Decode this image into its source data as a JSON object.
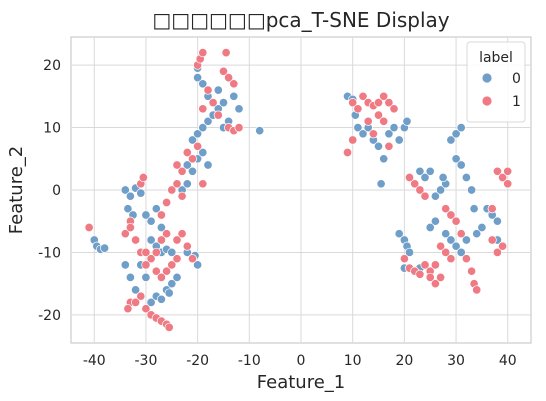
{
  "chart_data": {
    "type": "scatter",
    "title": "□□□□□□pca_T-SNE Display",
    "xlabel": "Feature_1",
    "ylabel": "Feature_2",
    "xlim": [
      -44.5,
      44.5
    ],
    "ylim": [
      -24.5,
      24.5
    ],
    "xticks": [
      -40,
      -30,
      -20,
      -10,
      0,
      10,
      20,
      30,
      40
    ],
    "yticks": [
      -20,
      -10,
      0,
      10,
      20
    ],
    "grid": true,
    "legend": {
      "title": "label",
      "placement": "top-right",
      "entries": [
        {
          "label": "0",
          "color": "#6f9ec9"
        },
        {
          "label": "1",
          "color": "#f07a84"
        }
      ]
    },
    "series": [
      {
        "name": "0",
        "color": "#6f9ec9",
        "points": [
          [
            -40,
            -8
          ],
          [
            -39.5,
            -9
          ],
          [
            -38.8,
            -9.5
          ],
          [
            -38,
            -9.3
          ],
          [
            -34,
            0
          ],
          [
            -33,
            -1
          ],
          [
            -32,
            0.3
          ],
          [
            -31,
            -0.5
          ],
          [
            -33.5,
            -3
          ],
          [
            -32.5,
            -4
          ],
          [
            -34,
            -12
          ],
          [
            -33,
            -14
          ],
          [
            -32,
            -16
          ],
          [
            -31,
            -12
          ],
          [
            -30,
            -14
          ],
          [
            -29,
            -18
          ],
          [
            -28,
            -17
          ],
          [
            -27,
            -17.5
          ],
          [
            -26,
            -16
          ],
          [
            -25,
            -15
          ],
          [
            -25.5,
            -16.5
          ],
          [
            -24,
            -14
          ],
          [
            -29,
            -8
          ],
          [
            -28,
            -9
          ],
          [
            -27,
            -10
          ],
          [
            -26,
            -9.5
          ],
          [
            -25,
            -10
          ],
          [
            -30,
            -4
          ],
          [
            -29,
            -5
          ],
          [
            -28,
            -3
          ],
          [
            -27,
            -6
          ],
          [
            -22,
            -10
          ],
          [
            -21,
            -11
          ],
          [
            -20,
            -12
          ],
          [
            -20.5,
            -10.5
          ],
          [
            -21,
            8
          ],
          [
            -20,
            9
          ],
          [
            -19,
            10
          ],
          [
            -18,
            11
          ],
          [
            -17,
            12
          ],
          [
            -16,
            13
          ],
          [
            -15,
            10
          ],
          [
            -14,
            11
          ],
          [
            -20,
            18
          ],
          [
            -20,
            19.5
          ],
          [
            -19,
            17
          ],
          [
            -18,
            15
          ],
          [
            -22,
            4
          ],
          [
            -21,
            3
          ],
          [
            -20,
            5
          ],
          [
            -19,
            6
          ],
          [
            -18,
            4
          ],
          [
            -23,
            0
          ],
          [
            -22,
            1
          ],
          [
            -16,
            16
          ],
          [
            -15,
            14
          ],
          [
            -13,
            15
          ],
          [
            -12,
            13
          ],
          [
            -8,
            9.5
          ],
          [
            9,
            15
          ],
          [
            10,
            14.5
          ],
          [
            10.5,
            12
          ],
          [
            11,
            10
          ],
          [
            12,
            9
          ],
          [
            13,
            10
          ],
          [
            14,
            8
          ],
          [
            15,
            7
          ],
          [
            16,
            5
          ],
          [
            15.5,
            1
          ],
          [
            17,
            9
          ],
          [
            18,
            10
          ],
          [
            19,
            8
          ],
          [
            20,
            10
          ],
          [
            20.5,
            11
          ],
          [
            19,
            -7
          ],
          [
            20,
            -8
          ],
          [
            20.5,
            -9
          ],
          [
            21,
            -10
          ],
          [
            20,
            -12.5
          ],
          [
            22,
            -13
          ],
          [
            23,
            -12.5
          ],
          [
            23,
            3
          ],
          [
            24,
            2
          ],
          [
            25,
            3
          ],
          [
            26,
            -1
          ],
          [
            27,
            0
          ],
          [
            28,
            1
          ],
          [
            27.5,
            2
          ],
          [
            29,
            8
          ],
          [
            30,
            9
          ],
          [
            31,
            10
          ],
          [
            30,
            5
          ],
          [
            31,
            4
          ],
          [
            32,
            2
          ],
          [
            33,
            0
          ],
          [
            33.5,
            -3
          ],
          [
            28,
            -7
          ],
          [
            29,
            -8
          ],
          [
            30,
            -9
          ],
          [
            31,
            -10
          ],
          [
            32,
            -8
          ],
          [
            34,
            -7
          ],
          [
            35,
            -6
          ],
          [
            36,
            -3
          ],
          [
            37,
            -4
          ],
          [
            38,
            -8
          ],
          [
            39,
            -9
          ],
          [
            38,
            -5
          ],
          [
            26,
            -5
          ],
          [
            25,
            -6
          ]
        ]
      },
      {
        "name": "1",
        "color": "#f07a84",
        "points": [
          [
            -41,
            -6
          ],
          [
            -33,
            -5
          ],
          [
            -34,
            -7
          ],
          [
            -33,
            -6
          ],
          [
            -31,
            1
          ],
          [
            -30.5,
            2
          ],
          [
            -32,
            -8
          ],
          [
            -31,
            -10
          ],
          [
            -30,
            -10
          ],
          [
            -33,
            -18
          ],
          [
            -33.5,
            -19
          ],
          [
            -32,
            -18
          ],
          [
            -31,
            -17
          ],
          [
            -30,
            -19
          ],
          [
            -29,
            -20
          ],
          [
            -28,
            -20.5
          ],
          [
            -27,
            -21
          ],
          [
            -26,
            -21.5
          ],
          [
            -25.5,
            -22
          ],
          [
            -26,
            -13
          ],
          [
            -25,
            -12
          ],
          [
            -24,
            -11
          ],
          [
            -26,
            -7
          ],
          [
            -27,
            -4
          ],
          [
            -26,
            -2
          ],
          [
            -25,
            0
          ],
          [
            -24,
            1
          ],
          [
            -23,
            -1
          ],
          [
            -27,
            -8
          ],
          [
            -28,
            -10
          ],
          [
            -29,
            -11
          ],
          [
            -30,
            -12
          ],
          [
            -24,
            -8
          ],
          [
            -23,
            -7
          ],
          [
            -22,
            -9
          ],
          [
            -21,
            -11
          ],
          [
            -28,
            -13
          ],
          [
            -27,
            -14
          ],
          [
            -20,
            20
          ],
          [
            -19.5,
            21
          ],
          [
            -19,
            22
          ],
          [
            -14.5,
            22
          ],
          [
            -15,
            19
          ],
          [
            -14,
            18
          ],
          [
            -13,
            17
          ],
          [
            -18,
            16
          ],
          [
            -17,
            14
          ],
          [
            -16,
            12
          ],
          [
            -14,
            10
          ],
          [
            -13,
            9.5
          ],
          [
            -12,
            10
          ],
          [
            -19,
            13
          ],
          [
            -20,
            7
          ],
          [
            -21,
            5
          ],
          [
            -22,
            6
          ],
          [
            -23,
            3
          ],
          [
            -24,
            4
          ],
          [
            -19,
            1
          ],
          [
            10,
            14
          ],
          [
            11,
            13
          ],
          [
            12,
            15
          ],
          [
            13,
            14
          ],
          [
            14,
            13.5
          ],
          [
            15,
            14
          ],
          [
            16,
            15
          ],
          [
            17,
            14
          ],
          [
            18,
            13
          ],
          [
            9,
            6
          ],
          [
            10,
            8
          ],
          [
            13,
            11
          ],
          [
            14,
            9
          ],
          [
            15,
            12
          ],
          [
            16,
            11
          ],
          [
            17,
            7
          ],
          [
            20,
            -11
          ],
          [
            21,
            -12.5
          ],
          [
            22,
            -13
          ],
          [
            23,
            -13.5
          ],
          [
            24,
            -12
          ],
          [
            25,
            -13
          ],
          [
            26,
            -12
          ],
          [
            25,
            -14
          ],
          [
            26,
            -15
          ],
          [
            27,
            -14
          ],
          [
            22,
            1
          ],
          [
            23,
            0
          ],
          [
            24,
            -1
          ],
          [
            21,
            2
          ],
          [
            28,
            -3
          ],
          [
            29,
            -4
          ],
          [
            30,
            -5
          ],
          [
            31,
            -7
          ],
          [
            32,
            -11
          ],
          [
            33,
            -13
          ],
          [
            33.5,
            -15
          ],
          [
            34,
            -16
          ],
          [
            28,
            -10
          ],
          [
            29,
            -11
          ],
          [
            27,
            -9
          ],
          [
            37,
            -8
          ],
          [
            38,
            -10
          ],
          [
            39,
            -9
          ],
          [
            38,
            3
          ],
          [
            39,
            2
          ],
          [
            40,
            3
          ],
          [
            40,
            1
          ],
          [
            37,
            -3
          ]
        ]
      }
    ]
  }
}
